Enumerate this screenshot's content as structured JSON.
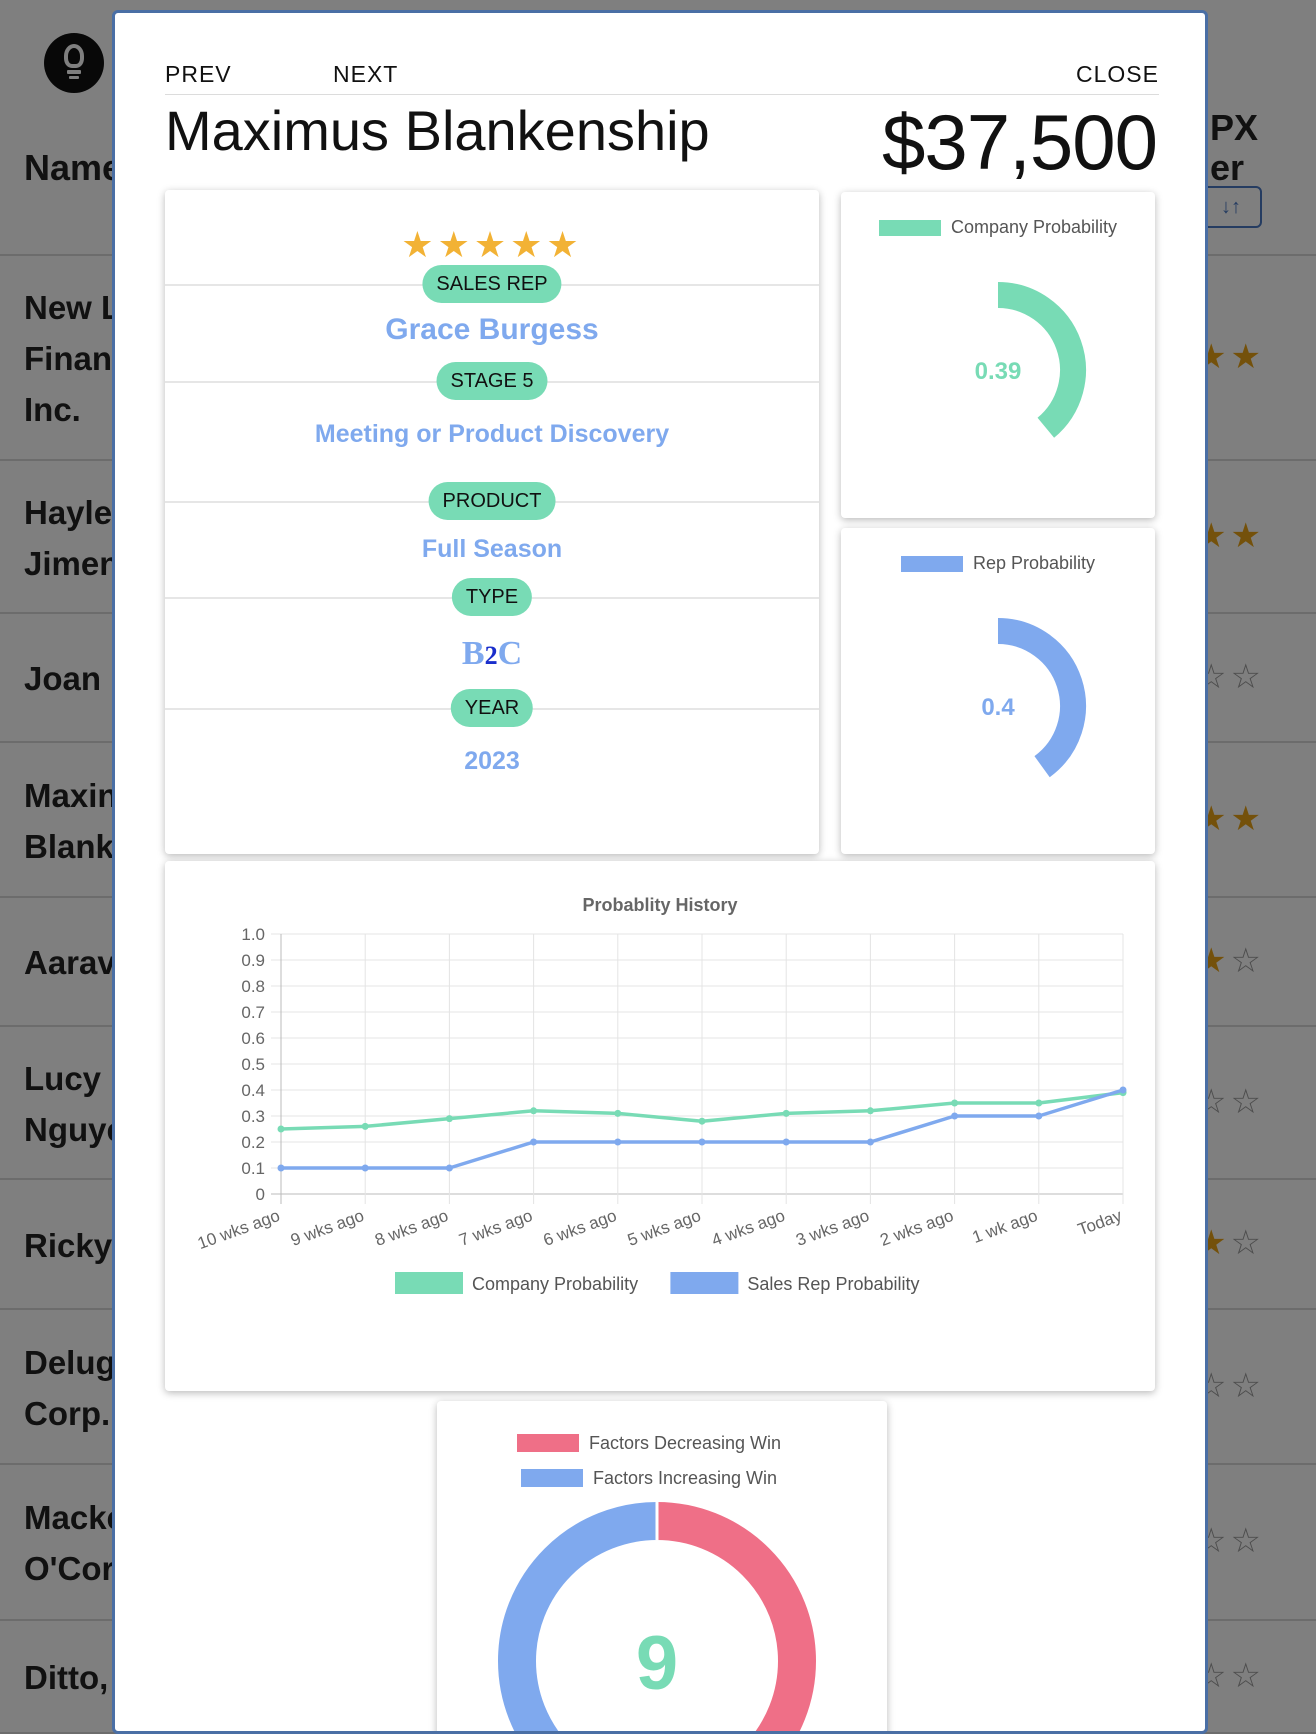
{
  "background": {
    "columns": {
      "name": "Name",
      "px_line1": "PX",
      "px_line2": "er",
      "sort_icons": "↓↑"
    },
    "rows": [
      {
        "name": "New L\nFinan\nInc.",
        "stars": 2
      },
      {
        "name": "Hayle\nJimen",
        "stars": 2
      },
      {
        "name": "Joan ",
        "stars": 0
      },
      {
        "name": "Maxin\nBlank",
        "stars": 2
      },
      {
        "name": "Aarav",
        "stars": 1
      },
      {
        "name": "Lucy \nNguye",
        "stars": 0
      },
      {
        "name": "Ricky",
        "stars": 1
      },
      {
        "name": "Delug\nCorp.",
        "stars": 0
      },
      {
        "name": "Macke\nO'Cor",
        "stars": 0
      },
      {
        "name": "Ditto,",
        "stars": 0
      }
    ]
  },
  "modal": {
    "nav": {
      "prev": "PREV",
      "next": "NEXT",
      "close": "CLOSE"
    },
    "deal_name": "Maximus Blankenship",
    "amount": "$37,500",
    "rating": 5,
    "fields": {
      "sales_rep_label": "SALES REP",
      "sales_rep": "Grace Burgess",
      "stage_label": "STAGE 5",
      "stage": "Meeting or Product Discovery",
      "product_label": "PRODUCT",
      "product": "Full Season",
      "type_label": "TYPE",
      "type_logo_text": "B2C",
      "year_label": "YEAR",
      "year": "2023"
    },
    "company_probability": {
      "legend": "Company Probability",
      "value": "0.39",
      "fraction": 0.39,
      "color": "#78dbb5"
    },
    "rep_probability": {
      "legend": "Rep Probability",
      "value": "0.4",
      "fraction": 0.4,
      "color": "#7fa9ee"
    },
    "factors": {
      "legend_decreasing": "Factors Decreasing Win",
      "legend_increasing": "Factors Increasing Win",
      "center_value": "9",
      "decreasing_color": "#ef6f87",
      "increasing_color": "#7fa9ee",
      "center_color": "#78dbb5"
    }
  },
  "chart_data": {
    "type": "line",
    "title": "Probablity History",
    "categories": [
      "10 wks ago",
      "9 wks ago",
      "8 wks ago",
      "7 wks ago",
      "6 wks ago",
      "5 wks ago",
      "4 wks ago",
      "3 wks ago",
      "2 wks ago",
      "1 wk ago",
      "Today"
    ],
    "series": [
      {
        "name": "Company Probability",
        "color": "#78dbb5",
        "values": [
          0.25,
          0.26,
          0.29,
          0.32,
          0.31,
          0.28,
          0.31,
          0.32,
          0.35,
          0.35,
          0.39
        ]
      },
      {
        "name": "Sales Rep Probability",
        "color": "#7fa9ee",
        "values": [
          0.1,
          0.1,
          0.1,
          0.2,
          0.2,
          0.2,
          0.2,
          0.2,
          0.3,
          0.3,
          0.4
        ]
      }
    ],
    "yticks": [
      "0",
      "0.1",
      "0.2",
      "0.3",
      "0.4",
      "0.5",
      "0.6",
      "0.7",
      "0.8",
      "0.9",
      "1.0"
    ],
    "ylim": [
      0,
      1
    ],
    "grid": true,
    "legend_position": "bottom"
  }
}
